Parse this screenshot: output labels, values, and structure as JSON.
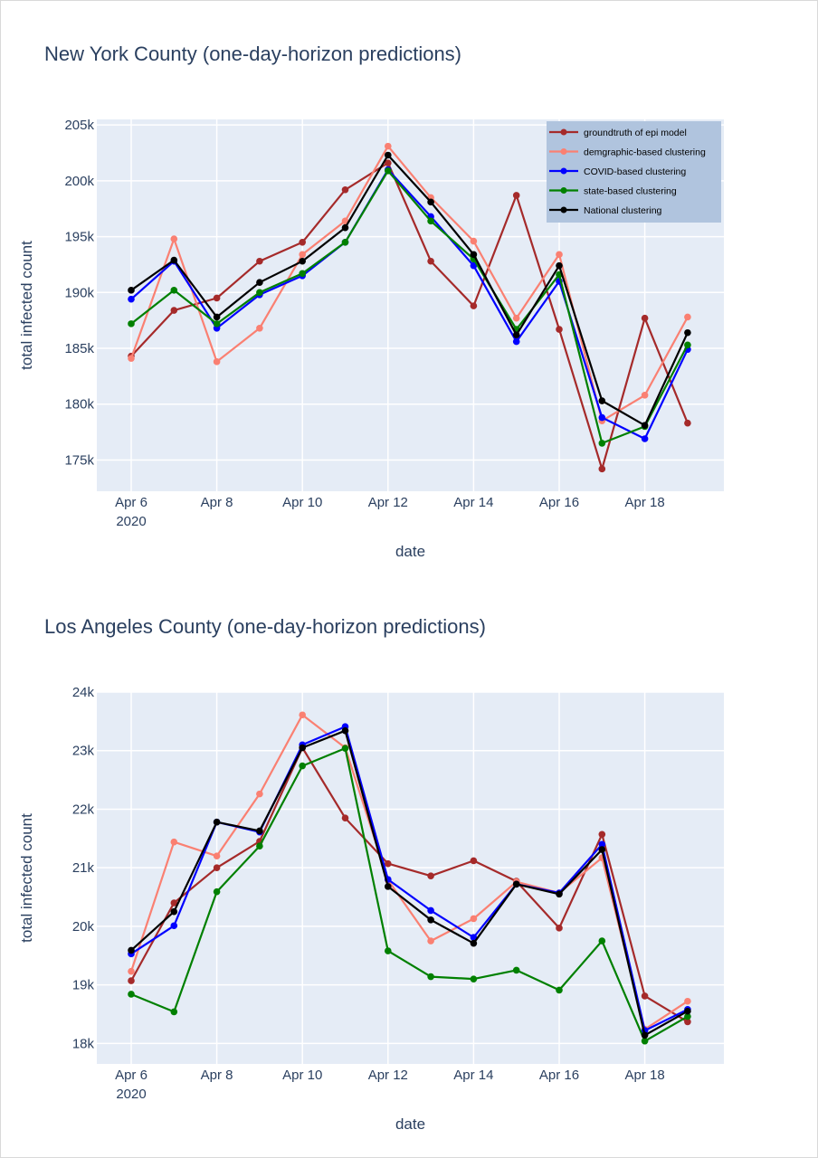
{
  "charts": [
    {
      "type": "line",
      "title": "New York County (one-day-horizon predictions)",
      "xlabel": "date",
      "ylabel": "total infected count",
      "x": [
        "2020-04-06",
        "2020-04-07",
        "2020-04-08",
        "2020-04-09",
        "2020-04-10",
        "2020-04-11",
        "2020-04-12",
        "2020-04-13",
        "2020-04-14",
        "2020-04-15",
        "2020-04-16",
        "2020-04-17",
        "2020-04-18",
        "2020-04-19"
      ],
      "x_ticks": [
        {
          "index": 0,
          "label": "Apr 6",
          "sub": "2020"
        },
        {
          "index": 2,
          "label": "Apr 8",
          "sub": ""
        },
        {
          "index": 4,
          "label": "Apr 10",
          "sub": ""
        },
        {
          "index": 6,
          "label": "Apr 12",
          "sub": ""
        },
        {
          "index": 8,
          "label": "Apr 14",
          "sub": ""
        },
        {
          "index": 10,
          "label": "Apr 16",
          "sub": ""
        },
        {
          "index": 12,
          "label": "Apr 18",
          "sub": ""
        }
      ],
      "y_ticks": [
        {
          "value": 175000,
          "label": "175k"
        },
        {
          "value": 180000,
          "label": "180k"
        },
        {
          "value": 185000,
          "label": "185k"
        },
        {
          "value": 190000,
          "label": "190k"
        },
        {
          "value": 195000,
          "label": "195k"
        },
        {
          "value": 200000,
          "label": "200k"
        },
        {
          "value": 205000,
          "label": "205k"
        }
      ],
      "ylim": [
        172200,
        205500
      ],
      "grid": true,
      "legend": "top-right",
      "series": [
        {
          "name": "groundtruth of epi model",
          "color": "#a52a2a",
          "values": [
            184300,
            188400,
            189500,
            192800,
            194500,
            199200,
            201600,
            192800,
            188800,
            198700,
            186700,
            174200,
            187700,
            178300
          ]
        },
        {
          "name": "demgraphic-based clustering",
          "color": "#fa8072",
          "values": [
            184100,
            194800,
            183800,
            186800,
            193400,
            196400,
            203100,
            198500,
            194600,
            187700,
            193400,
            178500,
            180800,
            187800
          ]
        },
        {
          "name": "COVID-based clustering",
          "color": "#0000ff",
          "values": [
            189400,
            192800,
            186800,
            189800,
            191500,
            194500,
            201000,
            196800,
            192400,
            185600,
            191000,
            178800,
            176900,
            184900
          ]
        },
        {
          "name": "state-based clustering",
          "color": "#008000",
          "values": [
            187200,
            190200,
            187200,
            190000,
            191700,
            194500,
            200900,
            196400,
            193000,
            186700,
            191600,
            176500,
            178000,
            185300
          ]
        },
        {
          "name": "National clustering",
          "color": "#000000",
          "values": [
            190200,
            192900,
            187800,
            190900,
            192800,
            195800,
            202300,
            198100,
            193400,
            186200,
            192400,
            180300,
            178100,
            186400
          ]
        }
      ]
    },
    {
      "type": "line",
      "title": "Los Angeles County (one-day-horizon predictions)",
      "xlabel": "date",
      "ylabel": "total infected count",
      "x": [
        "2020-04-06",
        "2020-04-07",
        "2020-04-08",
        "2020-04-09",
        "2020-04-10",
        "2020-04-11",
        "2020-04-12",
        "2020-04-13",
        "2020-04-14",
        "2020-04-15",
        "2020-04-16",
        "2020-04-17",
        "2020-04-18",
        "2020-04-19"
      ],
      "x_ticks": [
        {
          "index": 0,
          "label": "Apr 6",
          "sub": "2020"
        },
        {
          "index": 2,
          "label": "Apr 8",
          "sub": ""
        },
        {
          "index": 4,
          "label": "Apr 10",
          "sub": ""
        },
        {
          "index": 6,
          "label": "Apr 12",
          "sub": ""
        },
        {
          "index": 8,
          "label": "Apr 14",
          "sub": ""
        },
        {
          "index": 10,
          "label": "Apr 16",
          "sub": ""
        },
        {
          "index": 12,
          "label": "Apr 18",
          "sub": ""
        }
      ],
      "y_ticks": [
        {
          "value": 18000,
          "label": "18k"
        },
        {
          "value": 19000,
          "label": "19k"
        },
        {
          "value": 20000,
          "label": "20k"
        },
        {
          "value": 21000,
          "label": "21k"
        },
        {
          "value": 22000,
          "label": "22k"
        },
        {
          "value": 23000,
          "label": "23k"
        },
        {
          "value": 24000,
          "label": "24k"
        }
      ],
      "ylim": [
        17650,
        24000
      ],
      "grid": true,
      "legend": "none",
      "series": [
        {
          "name": "groundtruth of epi model",
          "color": "#a52a2a",
          "values": [
            19070,
            20400,
            21000,
            21450,
            23050,
            21850,
            21070,
            20860,
            21120,
            20770,
            19970,
            21570,
            18810,
            18370
          ]
        },
        {
          "name": "demgraphic-based clustering",
          "color": "#fa8072",
          "values": [
            19230,
            21440,
            21200,
            22260,
            23610,
            23050,
            20790,
            19750,
            20130,
            20760,
            20570,
            21170,
            18240,
            18720
          ]
        },
        {
          "name": "COVID-based clustering",
          "color": "#0000ff",
          "values": [
            19530,
            20010,
            21780,
            21610,
            23100,
            23410,
            20800,
            20270,
            19810,
            20720,
            20570,
            21400,
            18220,
            18580
          ]
        },
        {
          "name": "state-based clustering",
          "color": "#008000",
          "values": [
            18840,
            18540,
            20590,
            21370,
            22740,
            23040,
            19580,
            19140,
            19100,
            19250,
            18910,
            19750,
            18040,
            18460
          ]
        },
        {
          "name": "National clustering",
          "color": "#000000",
          "values": [
            19590,
            20250,
            21780,
            21630,
            23050,
            23340,
            20680,
            20110,
            19710,
            20720,
            20550,
            21310,
            18140,
            18550
          ]
        }
      ]
    }
  ]
}
